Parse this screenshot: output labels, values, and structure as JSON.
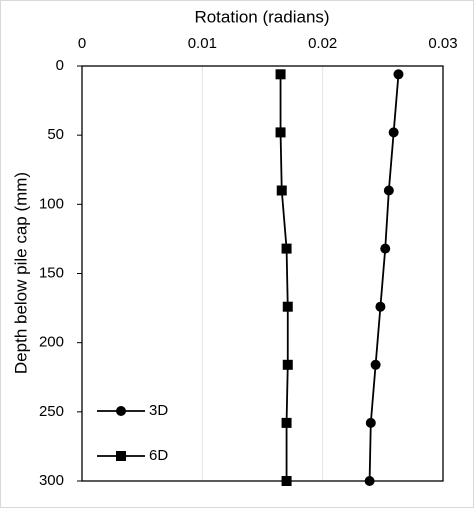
{
  "chart_data": {
    "type": "line",
    "x_label": "Rotation (radians)",
    "y_label": "Depth below pile cap (mm)",
    "y": [
      6,
      48,
      90,
      132,
      174,
      216,
      258,
      300
    ],
    "series": [
      {
        "name": "3D",
        "color": "#000000",
        "marker": "circle",
        "values": [
          0.0263,
          0.0259,
          0.0255,
          0.0252,
          0.0248,
          0.0244,
          0.024,
          0.0239
        ]
      },
      {
        "name": "6D",
        "color": "#000000",
        "marker": "square",
        "values": [
          0.0165,
          0.0165,
          0.0166,
          0.017,
          0.0171,
          0.0171,
          0.017,
          0.017
        ]
      }
    ],
    "xlim": [
      0,
      0.03
    ],
    "xticks": [
      0,
      0.01,
      0.02,
      0.03
    ],
    "ylim": [
      0,
      300
    ],
    "yticks": [
      0,
      50,
      100,
      150,
      200,
      250,
      300
    ],
    "y_inverted": true,
    "x_axis_position": "top",
    "grid": true,
    "legend": "lower-left"
  }
}
